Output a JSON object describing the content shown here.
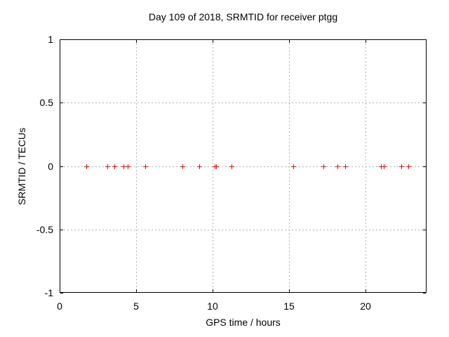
{
  "chart_data": {
    "type": "scatter",
    "title": "Day 109 of 2018, SRMTID for receiver ptgg",
    "xlabel": "GPS time / hours",
    "ylabel": "SRMTID / TECUs",
    "xlim": [
      0,
      24
    ],
    "ylim": [
      -1,
      1
    ],
    "x_ticks": [
      0,
      5,
      10,
      15,
      20
    ],
    "y_ticks": [
      -1,
      -0.5,
      0,
      0.5,
      1
    ],
    "x_gridlines": [
      5,
      10,
      15,
      20
    ],
    "y_gridlines": [
      -0.5,
      0,
      0.5
    ],
    "grid": true,
    "legend": "none",
    "marker": "plus",
    "marker_color": "#ff0000",
    "grid_color": "#b0b0b0",
    "border_color": "#000000",
    "background_color": "#ffffff",
    "series": [
      {
        "name": "SRMTID",
        "x": [
          1.75,
          3.12,
          3.58,
          4.19,
          4.47,
          5.62,
          8.03,
          9.15,
          10.14,
          10.25,
          11.26,
          15.27,
          17.26,
          18.17,
          18.68,
          21.0,
          21.19,
          22.36,
          22.79
        ],
        "y": [
          0,
          0,
          0,
          0,
          0,
          0,
          0,
          0,
          0,
          0,
          0,
          0,
          0,
          0,
          0,
          0,
          0,
          0,
          0
        ]
      }
    ]
  }
}
